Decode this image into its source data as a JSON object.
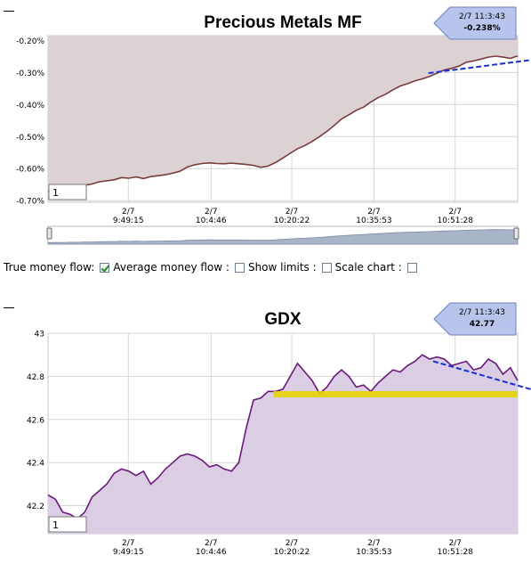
{
  "controls": {
    "true_money_flow": "True money flow:",
    "average_money_flow": "Average money flow :",
    "show_limits": "Show limits :",
    "scale_chart": "Scale chart :",
    "states": {
      "average_money_flow": true,
      "show_limits": false,
      "scale_chart": false,
      "scale_chart_2": false
    }
  },
  "chart_data": [
    {
      "type": "area",
      "title": "Precious Metals MF",
      "ylim": [
        -0.705,
        -0.185
      ],
      "yticks": [
        -0.2,
        -0.3,
        -0.4,
        -0.5,
        -0.6,
        -0.7
      ],
      "ytick_labels": [
        "-0.20%",
        "-0.30%",
        "-0.40%",
        "-0.50%",
        "-0.60%",
        "-0.70%"
      ],
      "xticks": [
        {
          "date": "2/7",
          "time": "9:49:15"
        },
        {
          "date": "2/7",
          "time": "10:4:46"
        },
        {
          "date": "2/7",
          "time": "10:20:22"
        },
        {
          "date": "2/7",
          "time": "10:35:53"
        },
        {
          "date": "2/7",
          "time": "10:51:28"
        }
      ],
      "grid": true,
      "fill_color": "#dcd2d4",
      "line_color": "#7a3b3b",
      "trend_color": "#1a2fd6",
      "tooltip": {
        "time": "2/7 11:3:43",
        "value": "-0.238%"
      },
      "input_value": "1",
      "series": [
        {
          "values": [
            -0.672,
            -0.668,
            -0.665,
            -0.66,
            -0.658,
            -0.652,
            -0.648,
            -0.641,
            -0.638,
            -0.635,
            -0.628,
            -0.63,
            -0.626,
            -0.631,
            -0.625,
            -0.622,
            -0.619,
            -0.614,
            -0.608,
            -0.595,
            -0.588,
            -0.584,
            -0.582,
            -0.584,
            -0.585,
            -0.583,
            -0.585,
            -0.587,
            -0.59,
            -0.596,
            -0.592,
            -0.581,
            -0.567,
            -0.552,
            -0.538,
            -0.528,
            -0.515,
            -0.5,
            -0.484,
            -0.465,
            -0.445,
            -0.432,
            -0.418,
            -0.408,
            -0.392,
            -0.378,
            -0.368,
            -0.354,
            -0.342,
            -0.335,
            -0.326,
            -0.32,
            -0.312,
            -0.302,
            -0.292,
            -0.287,
            -0.28,
            -0.268,
            -0.264,
            -0.258,
            -0.252,
            -0.249,
            -0.252,
            -0.256,
            -0.248
          ]
        }
      ],
      "trend": {
        "x_frac": [
          0.81,
          1.06
        ],
        "y": [
          -0.302,
          -0.255
        ]
      },
      "navigator": true
    },
    {
      "type": "area",
      "title": "GDX",
      "ylim": [
        42.07,
        43.0
      ],
      "yticks": [
        43,
        42.8,
        42.6,
        42.4,
        42.2
      ],
      "ytick_labels": [
        "43",
        "42.8",
        "42.6",
        "42.4",
        "42.2"
      ],
      "xticks": [
        {
          "date": "2/7",
          "time": "9:49:15"
        },
        {
          "date": "2/7",
          "time": "10:4:46"
        },
        {
          "date": "2/7",
          "time": "10:20:22"
        },
        {
          "date": "2/7",
          "time": "10:35:53"
        },
        {
          "date": "2/7",
          "time": "10:51:28"
        }
      ],
      "grid": true,
      "fill_color": "#dacde4",
      "line_color": "#6a1a7a",
      "trend_color": "#1a2fd6",
      "highlight_color": "#e6d400",
      "highlight_level": 42.717,
      "highlight_x_frac": [
        0.48,
        1.0
      ],
      "tooltip": {
        "time": "2/7 11:3:43",
        "value": "42.77"
      },
      "input_value": "1",
      "series": [
        {
          "values": [
            42.25,
            42.23,
            42.17,
            42.16,
            42.14,
            42.17,
            42.24,
            42.27,
            42.3,
            42.35,
            42.37,
            42.36,
            42.34,
            42.36,
            42.3,
            42.33,
            42.37,
            42.4,
            42.43,
            42.44,
            42.43,
            42.41,
            42.38,
            42.39,
            42.37,
            42.36,
            42.4,
            42.56,
            42.69,
            42.7,
            42.73,
            42.73,
            42.74,
            42.8,
            42.86,
            42.82,
            42.78,
            42.72,
            42.75,
            42.8,
            42.83,
            42.8,
            42.75,
            42.76,
            42.73,
            42.77,
            42.8,
            42.83,
            42.82,
            42.85,
            42.87,
            42.9,
            42.88,
            42.89,
            42.88,
            42.85,
            42.86,
            42.87,
            42.83,
            42.84,
            42.88,
            42.86,
            42.81,
            42.84,
            42.78
          ]
        }
      ],
      "trend": {
        "x_frac": [
          0.82,
          1.06
        ],
        "y": [
          42.87,
          42.72
        ]
      },
      "navigator": false
    }
  ]
}
